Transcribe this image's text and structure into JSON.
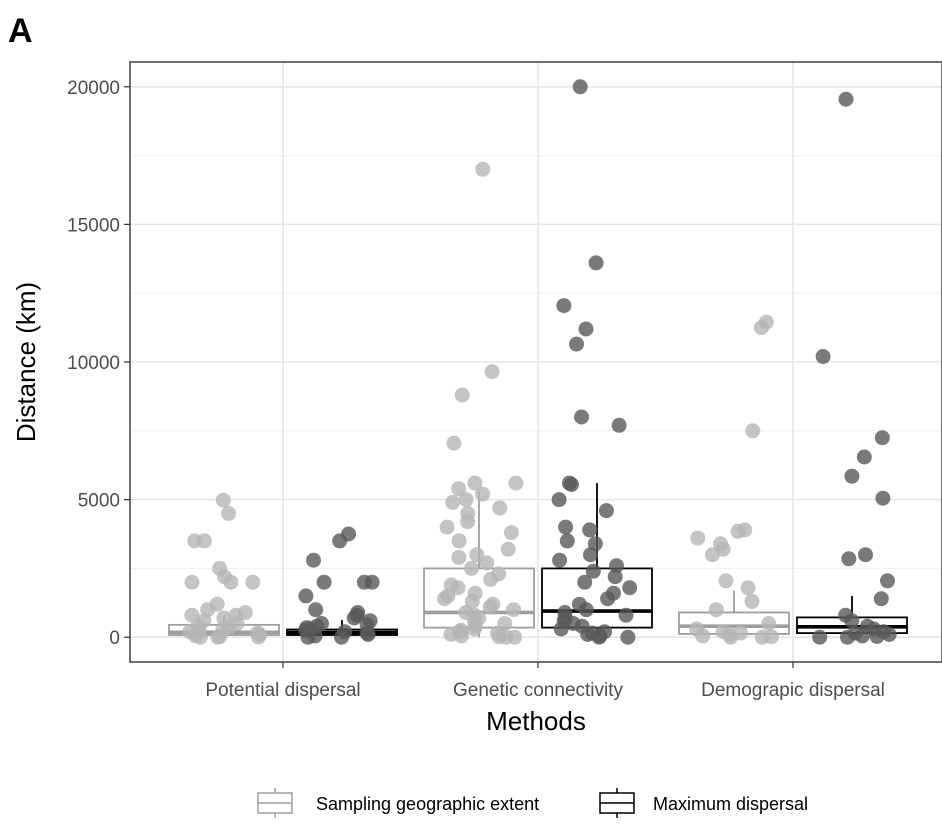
{
  "chart_data": {
    "type": "box",
    "panel_label": "A",
    "xlabel": "Methods",
    "ylabel": "Distance (km)",
    "ylim": [
      -900,
      20900
    ],
    "y_ticks": [
      0,
      5000,
      10000,
      15000,
      20000
    ],
    "categories": [
      "Potential dispersal",
      "Genetic connectivity",
      "Demograpic dispersal"
    ],
    "grid": true,
    "legend_position": "bottom",
    "series": [
      {
        "name": "Sampling geographic extent",
        "color": "#9e9e9e",
        "point_color": "#b5b5b5",
        "boxes": [
          {
            "q1": 80,
            "median": 180,
            "q3": 450,
            "whisker_low": 0,
            "whisker_high": 800
          },
          {
            "q1": 350,
            "median": 900,
            "q3": 2500,
            "whisker_low": 0,
            "whisker_high": 5300
          },
          {
            "q1": 120,
            "median": 400,
            "q3": 900,
            "whisker_low": 0,
            "whisker_high": 1700
          }
        ],
        "points": [
          [
            4980,
            4500,
            3500,
            3500,
            2500,
            2200,
            2000,
            2000,
            2000,
            1200,
            1000,
            900,
            800,
            800,
            700,
            600,
            500,
            400,
            350,
            300,
            250,
            200,
            150,
            100,
            60,
            30,
            10,
            0,
            0
          ],
          [
            17000,
            9650,
            8800,
            7050,
            5600,
            5600,
            5400,
            5200,
            5000,
            4900,
            4700,
            4500,
            4200,
            4000,
            3800,
            3500,
            3200,
            3000,
            2900,
            2700,
            2500,
            2300,
            2100,
            1900,
            1800,
            1600,
            1500,
            1400,
            1300,
            1200,
            1100,
            1000,
            900,
            800,
            700,
            600,
            500,
            400,
            300,
            250,
            200,
            150,
            100,
            50,
            20,
            0,
            0
          ],
          [
            11450,
            11250,
            7500,
            3900,
            3850,
            3600,
            3400,
            3200,
            3000,
            2050,
            1800,
            1300,
            1000,
            500,
            300,
            200,
            150,
            100,
            50,
            20,
            0,
            0
          ]
        ]
      },
      {
        "name": "Maximum dispersal",
        "color": "#000000",
        "point_color": "#595959",
        "boxes": [
          {
            "q1": 80,
            "median": 170,
            "q3": 280,
            "whisker_low": 0,
            "whisker_high": 620
          },
          {
            "q1": 350,
            "median": 950,
            "q3": 2500,
            "whisker_low": 0,
            "whisker_high": 5600
          },
          {
            "q1": 150,
            "median": 380,
            "q3": 720,
            "whisker_low": 0,
            "whisker_high": 1500
          }
        ],
        "points": [
          [
            3750,
            3500,
            2800,
            2000,
            2000,
            2000,
            1500,
            1000,
            900,
            800,
            700,
            600,
            500,
            450,
            400,
            350,
            300,
            250,
            200,
            150,
            100,
            50,
            0,
            0
          ],
          [
            20000,
            13600,
            12050,
            11200,
            10650,
            8000,
            7700,
            5600,
            5550,
            5000,
            4600,
            4000,
            3900,
            3500,
            3400,
            3000,
            2800,
            2600,
            2400,
            2200,
            2000,
            1800,
            1600,
            1400,
            1200,
            1000,
            900,
            800,
            700,
            600,
            500,
            400,
            300,
            200,
            150,
            100,
            50,
            0,
            0
          ],
          [
            19550,
            10200,
            7250,
            6550,
            5850,
            5050,
            3000,
            2850,
            2050,
            1400,
            800,
            600,
            400,
            300,
            200,
            150,
            100,
            50,
            30,
            0,
            0
          ]
        ]
      }
    ]
  }
}
